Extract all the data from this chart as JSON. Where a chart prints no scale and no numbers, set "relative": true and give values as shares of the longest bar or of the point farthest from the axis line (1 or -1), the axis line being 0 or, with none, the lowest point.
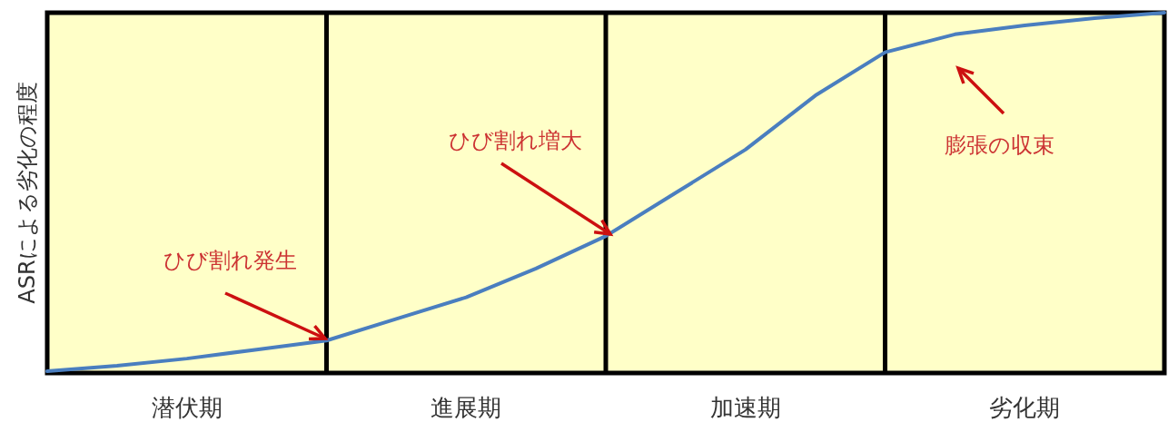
{
  "chart_data": {
    "type": "line",
    "relative": true,
    "ylabel": "ASRによる劣化の程度",
    "categories": [
      null,
      null,
      "潜伏期",
      null,
      null,
      null,
      "進展期",
      null,
      null,
      null,
      "加速期",
      null,
      null,
      null,
      "劣化期",
      null,
      null
    ],
    "values": [
      0.005,
      0.02,
      0.04,
      0.065,
      0.09,
      0.15,
      0.21,
      0.29,
      0.38,
      0.5,
      0.62,
      0.77,
      0.89,
      0.94,
      0.965,
      0.985,
      1
    ],
    "color": "#4a7ebf",
    "grid": "x",
    "annotations": [
      "ひび割れ発生",
      "ひび割れ増大",
      "膨張の収束"
    ]
  }
}
